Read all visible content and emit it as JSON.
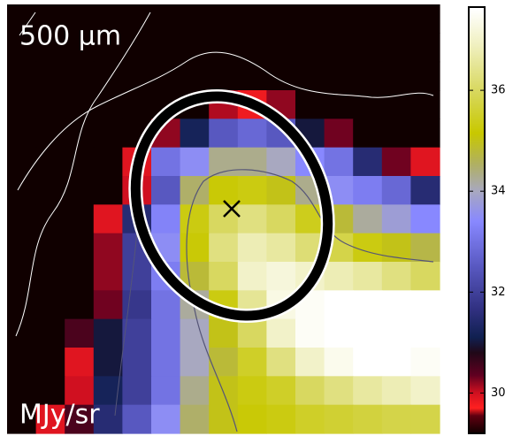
{
  "chart_data": {
    "type": "heatmap",
    "annotations": [
      "500 μm",
      "MJy/sr"
    ],
    "z": [
      [
        29.2,
        29.2,
        29.2,
        29.2,
        29.2,
        29.2,
        29.2,
        29.2,
        29.2,
        29.2,
        29.2,
        29.2,
        29.2,
        29.2,
        29.2
      ],
      [
        29.2,
        29.2,
        29.2,
        29.2,
        29.2,
        29.2,
        29.2,
        29.2,
        29.2,
        29.2,
        29.2,
        29.2,
        29.2,
        29.2,
        29.2
      ],
      [
        29.2,
        29.2,
        29.2,
        29.2,
        29.2,
        29.2,
        29.2,
        29.2,
        29.2,
        29.2,
        29.2,
        29.2,
        29.2,
        29.2,
        29.2
      ],
      [
        29.2,
        29.2,
        29.2,
        29.2,
        29.2,
        29.2,
        29.2,
        30.1,
        29.8,
        30.2,
        29.2,
        29.2,
        29.2,
        29.2,
        29.2
      ],
      [
        29.2,
        29.2,
        29.2,
        29.2,
        29.2,
        30.2,
        31.2,
        32.5,
        32.8,
        32.5,
        31,
        30.3,
        29.2,
        29.2,
        29.2
      ],
      [
        29.2,
        29.2,
        29.2,
        29.2,
        29.9,
        33,
        33.5,
        34.3,
        34.3,
        34,
        33.4,
        33,
        31.5,
        30.3,
        29.9
      ],
      [
        29.2,
        29.2,
        29.2,
        29.2,
        30,
        32.5,
        34.5,
        35.2,
        35.3,
        35,
        34.3,
        33.5,
        33.2,
        32.8,
        31.5
      ],
      [
        29.2,
        29.2,
        29.2,
        29.9,
        31.5,
        33.3,
        35.3,
        36,
        36.3,
        36,
        35.4,
        34.8,
        34.2,
        33.8,
        33.4
      ],
      [
        29.2,
        29.2,
        29.2,
        30.2,
        32,
        33.5,
        35.2,
        36.3,
        36.8,
        36.6,
        36.2,
        35.8,
        35.3,
        35,
        34.7
      ],
      [
        29.2,
        29.2,
        29.2,
        30.2,
        32,
        33.2,
        34.8,
        36,
        37,
        37.2,
        37,
        36.8,
        36.6,
        36.3,
        36
      ],
      [
        29.2,
        29.2,
        29.2,
        30.3,
        31.8,
        33,
        34.2,
        35.3,
        36.5,
        37.3,
        37.5,
        37.6,
        37.6,
        37.6,
        37.6
      ],
      [
        29.2,
        29.2,
        30.5,
        31,
        32,
        33,
        34,
        35,
        36,
        37,
        37.5,
        37.6,
        37.6,
        37.6,
        37.6
      ],
      [
        29.2,
        29.2,
        29.9,
        31,
        32,
        33,
        34,
        34.8,
        35.5,
        36.3,
        37,
        37.4,
        37.6,
        37.6,
        37.5
      ],
      [
        29.2,
        29.2,
        30,
        31.2,
        32,
        33,
        34.3,
        35,
        35.3,
        35.5,
        36,
        36.3,
        36.6,
        36.8,
        37
      ],
      [
        29.2,
        29.9,
        30.5,
        31.5,
        32.5,
        33.5,
        34.5,
        35,
        35.2,
        35.3,
        35.5,
        35.6,
        35.7,
        35.8,
        35.8
      ]
    ],
    "colorbar": {
      "lim": [
        29.2,
        37.65
      ],
      "ticks": [
        30,
        32,
        34,
        36
      ]
    },
    "colormap": [
      {
        "value": 29.2,
        "color": "#100000"
      },
      {
        "value": 29.55,
        "color": "#600010"
      },
      {
        "value": 29.7,
        "color": "#ff2020"
      },
      {
        "value": 30,
        "color": "#d01020"
      },
      {
        "value": 30.35,
        "color": "#600020"
      },
      {
        "value": 30.8,
        "color": "#200818"
      },
      {
        "value": 31.1,
        "color": "#102050"
      },
      {
        "value": 31.65,
        "color": "#303080"
      },
      {
        "value": 32.5,
        "color": "#5858c0"
      },
      {
        "value": 33.4,
        "color": "#8888ff"
      },
      {
        "value": 34,
        "color": "#a8a8c0"
      },
      {
        "value": 34.55,
        "color": "#b0b060"
      },
      {
        "value": 35.15,
        "color": "#c8c800"
      },
      {
        "value": 36,
        "color": "#d8d860"
      },
      {
        "value": 36.9,
        "color": "#f0f0c0"
      },
      {
        "value": 37.6,
        "color": "#ffffff"
      }
    ]
  }
}
